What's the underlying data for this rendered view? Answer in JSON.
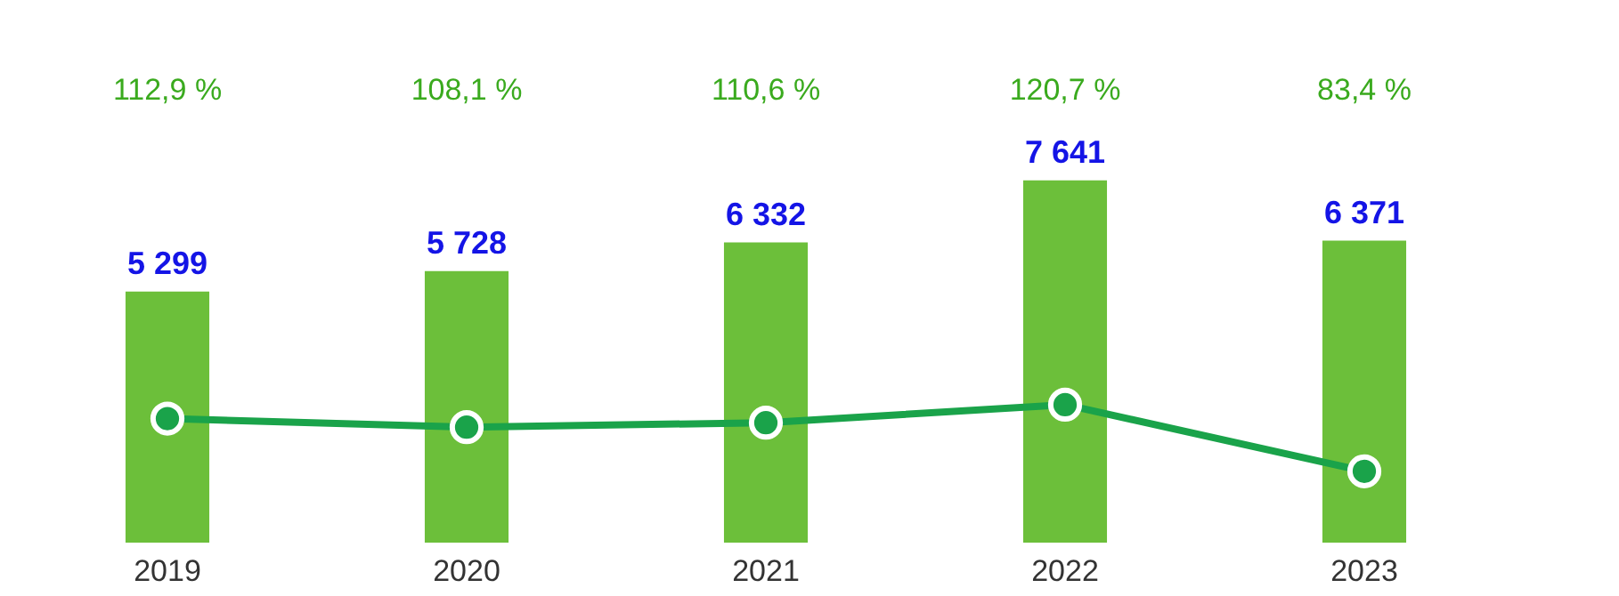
{
  "chart_data": {
    "type": "bar",
    "categories": [
      "2019",
      "2020",
      "2021",
      "2022",
      "2023"
    ],
    "series": [
      {
        "color": "#6cbf3a",
        "values": [
          5299,
          5728,
          6332,
          7641,
          6371
        ],
        "value_labels": [
          "5 299",
          "5 728",
          "6 332",
          "7 641",
          "6 371"
        ]
      },
      {
        "type": "line",
        "axis": "y2",
        "color": "#1aa34a",
        "values": [
          112.9,
          108.1,
          110.6,
          120.7,
          83.4
        ],
        "value_labels": [
          "112,9 %",
          "108,1 %",
          "110,6 %",
          "120,7 %",
          "83,4 %"
        ]
      }
    ],
    "tick_labels": "x",
    "marker": "circle",
    "line_style": "solid"
  }
}
